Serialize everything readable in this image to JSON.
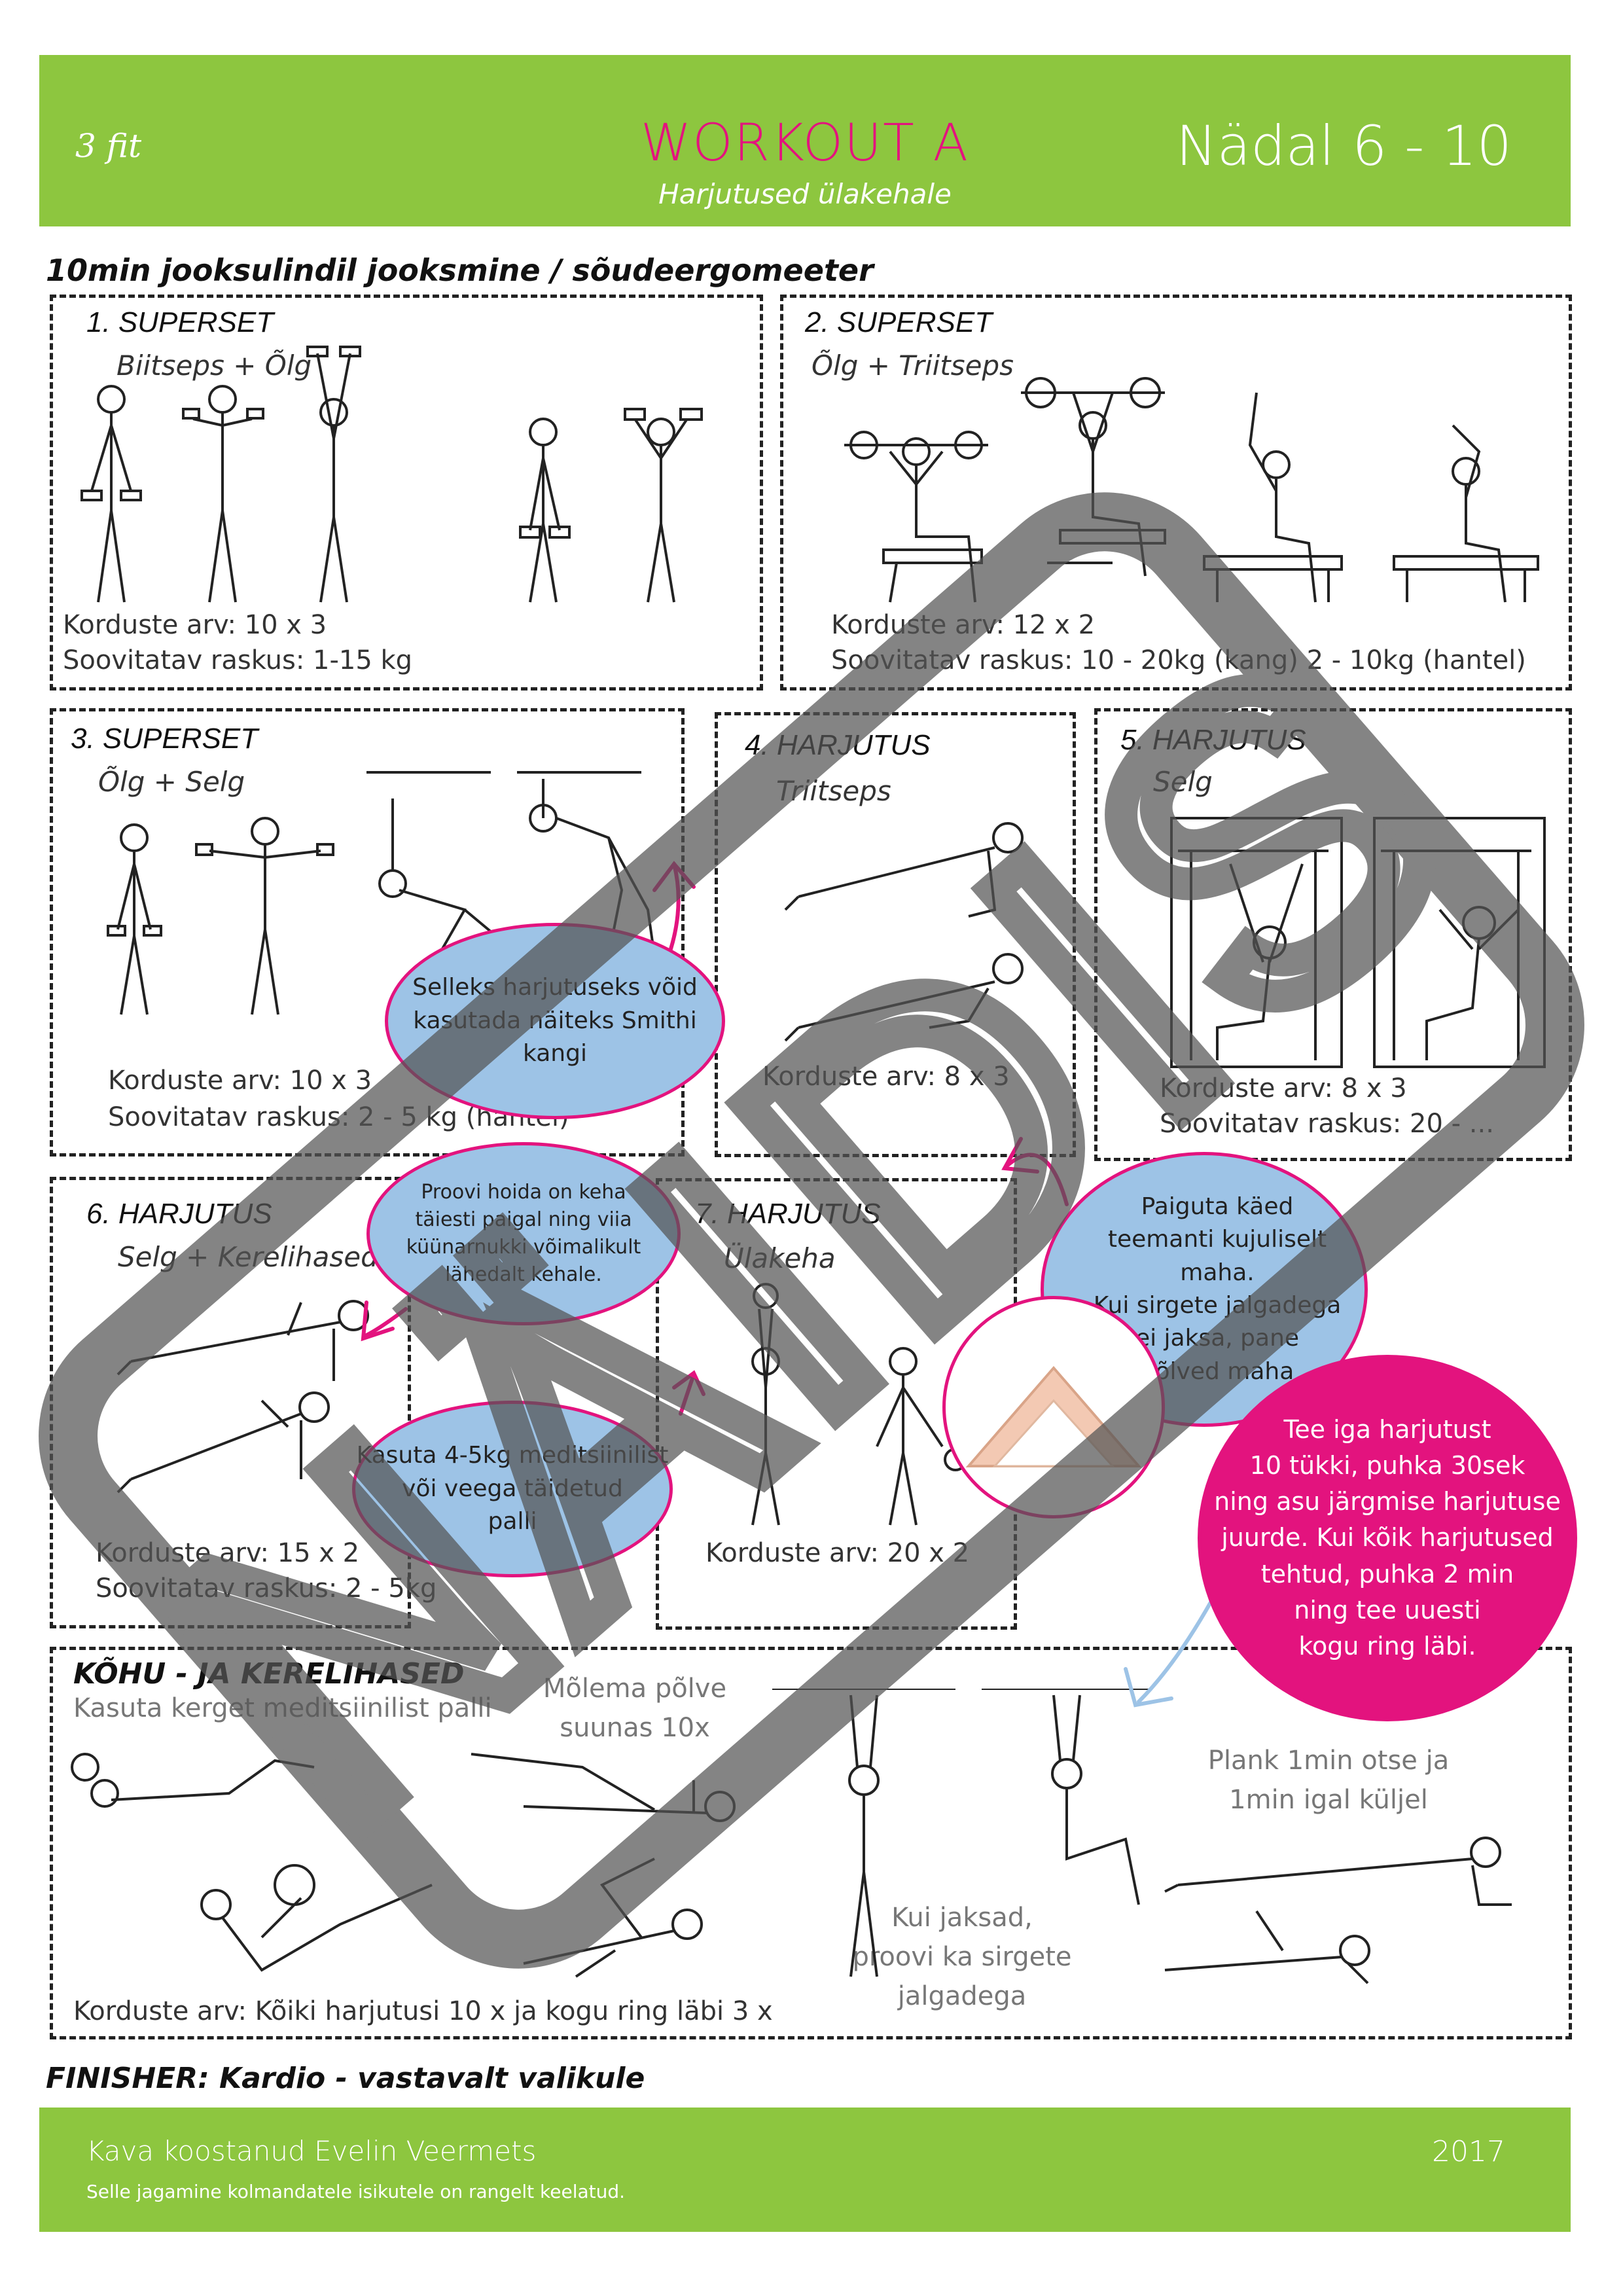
{
  "header": {
    "logo": "3 fit",
    "title": "WORKOUT A",
    "subtitle": "Harjutused ülakehale",
    "week": "Nädal 6 - 10",
    "bg_color": "#8dc63f",
    "title_color": "#e3137e"
  },
  "warmup": "10min jooksulindil jooksmine / sõudeergomeeter",
  "sections": {
    "s1": {
      "title": "1. SUPERSET",
      "subtitle": "Biitseps + Õlg",
      "reps": "Korduste arv: 10 x 3",
      "weight": "Soovitatav raskus: 1-15 kg"
    },
    "s2": {
      "title": "2. SUPERSET",
      "subtitle": "Õlg + Triitseps",
      "reps": "Korduste arv: 12 x 2",
      "weight": "Soovitatav raskus: 10 - 20kg (kang) 2 - 10kg (hantel)"
    },
    "s3": {
      "title": "3. SUPERSET",
      "subtitle": "Õlg + Selg",
      "reps": "Korduste arv: 10 x 3",
      "weight": "Soovitatav raskus: 2 - 5 kg (hantel)"
    },
    "s4": {
      "title": "4. HARJUTUS",
      "subtitle": "Triitseps",
      "reps": "Korduste arv: 8 x 3"
    },
    "s5": {
      "title": "5. HARJUTUS",
      "subtitle": "Selg",
      "reps": "Korduste arv: 8 x 3",
      "weight": "Soovitatav raskus: 20 - ..."
    },
    "s6": {
      "title": "6. HARJUTUS",
      "subtitle": "Selg + Kerelihased",
      "reps": "Korduste arv: 15 x 2",
      "weight": "Soovitatav raskus: 2 - 5kg"
    },
    "s7": {
      "title": "7. HARJUTUS",
      "subtitle": "Ülakeha",
      "reps": "Korduste arv: 20  x 2"
    },
    "core": {
      "title": "KÕHU - JA KERELIHASED",
      "note1": "Kasuta kerget meditsiinilist palli",
      "note2": [
        "Mõlema põlve",
        "suunas 10x"
      ],
      "note3": [
        "Kui jaksad,",
        "proovi ka sirgete",
        "jalgadega"
      ],
      "note4": [
        "Plank 1min otse ja",
        "1min igal küljel"
      ],
      "reps": "Korduste arv:  Kõiki harjutusi 10 x ja kogu ring läbi 3 x"
    }
  },
  "bubbles": {
    "smith": [
      "Selleks harjutuseks võid",
      "kasutada näiteks Smithi",
      "kangi"
    ],
    "hold": [
      "Proovi hoida on keha",
      "täiesti paigal ning viia",
      "küünarnukki võimalikult",
      "lähedalt kehale."
    ],
    "ball": [
      "Kasuta 4-5kg meditsiinilist",
      "või veega täidetud",
      "palli"
    ],
    "diamond": [
      "Paiguta käed",
      "teemanti kujuliselt maha.",
      "Kui sirgete jalgadega",
      "ei jaksa, pane",
      "põlved maha"
    ],
    "circuit": [
      "Tee iga harjutust",
      "10 tükki, puhka 30sek",
      "ning asu järgmise harjutuse",
      "juurde. Kui kõik harjutused",
      "tehtud, puhka 2 min",
      "ning tee uuesti",
      "kogu ring läbi."
    ]
  },
  "finisher": "FINISHER: Kardio - vastavalt valikule",
  "footer": {
    "author": "Kava koostanud Evelin Veermets",
    "year": "2017",
    "notice": "Selle jagamine kolmandatele isikutele on rangelt keelatud."
  },
  "watermark": "NÄIDIS"
}
